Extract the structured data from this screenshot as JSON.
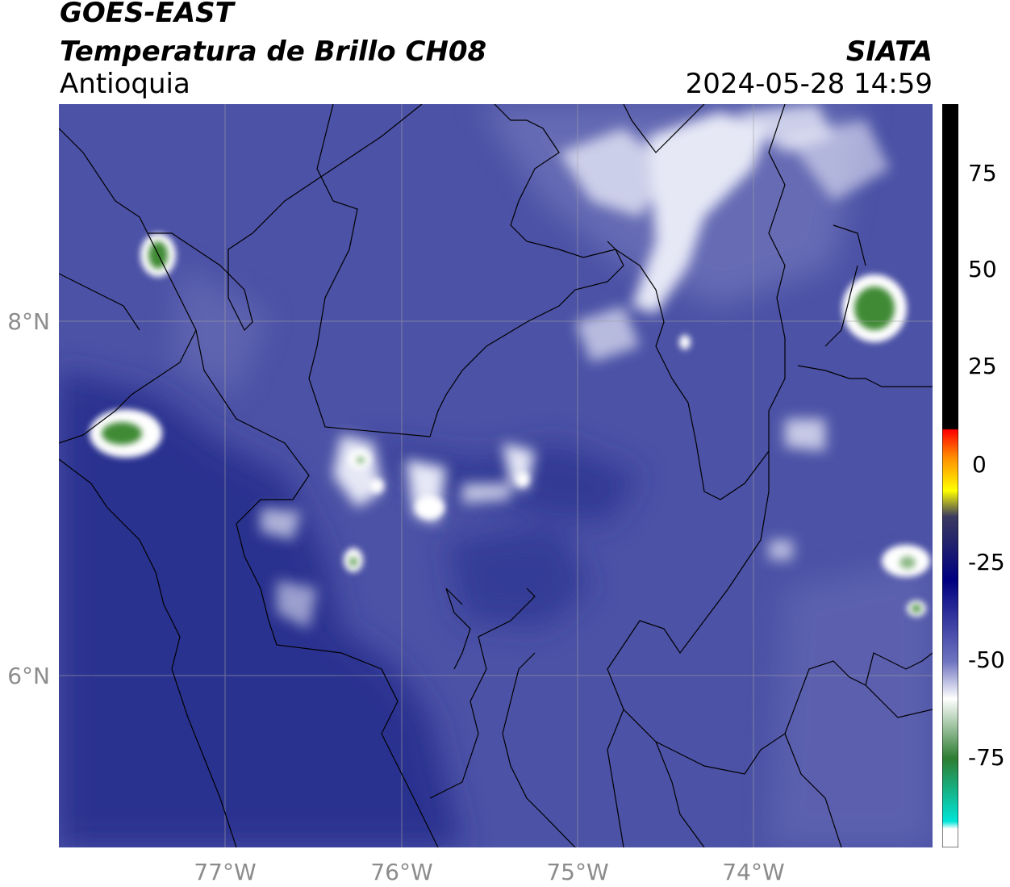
{
  "header": {
    "satellite": "GOES-EAST",
    "product": "Temperatura de Brillo CH08",
    "region": "Antioquia",
    "agency": "SIATA",
    "timestamp": "2024-05-28 14:59"
  },
  "axes": {
    "lat_ticks": [
      "8°N",
      "6°N"
    ],
    "lon_ticks": [
      "77°W",
      "76°W",
      "75°W",
      "74°W"
    ]
  },
  "colorbar": {
    "ticks": [
      "75",
      "50",
      "25",
      "0",
      "-25",
      "-50",
      "-75"
    ],
    "colors": {
      "black": "#000000",
      "red": "#ff0000",
      "orange": "#ff8c00",
      "yellow": "#ffff00",
      "navy": "#1a237e",
      "blue": "#4a50a8",
      "white": "#ffffff",
      "green": "#2e7d32",
      "cyan": "#00e5d8"
    }
  },
  "map_colors": {
    "base_blue": "#4c52a6",
    "dark_blue": "#2b3290",
    "light_blue": "#7b80c0",
    "cloud_white": "#eef0fa",
    "cold_green": "#3f8a36",
    "border": "#000000",
    "grid": "#a0a0a0"
  }
}
